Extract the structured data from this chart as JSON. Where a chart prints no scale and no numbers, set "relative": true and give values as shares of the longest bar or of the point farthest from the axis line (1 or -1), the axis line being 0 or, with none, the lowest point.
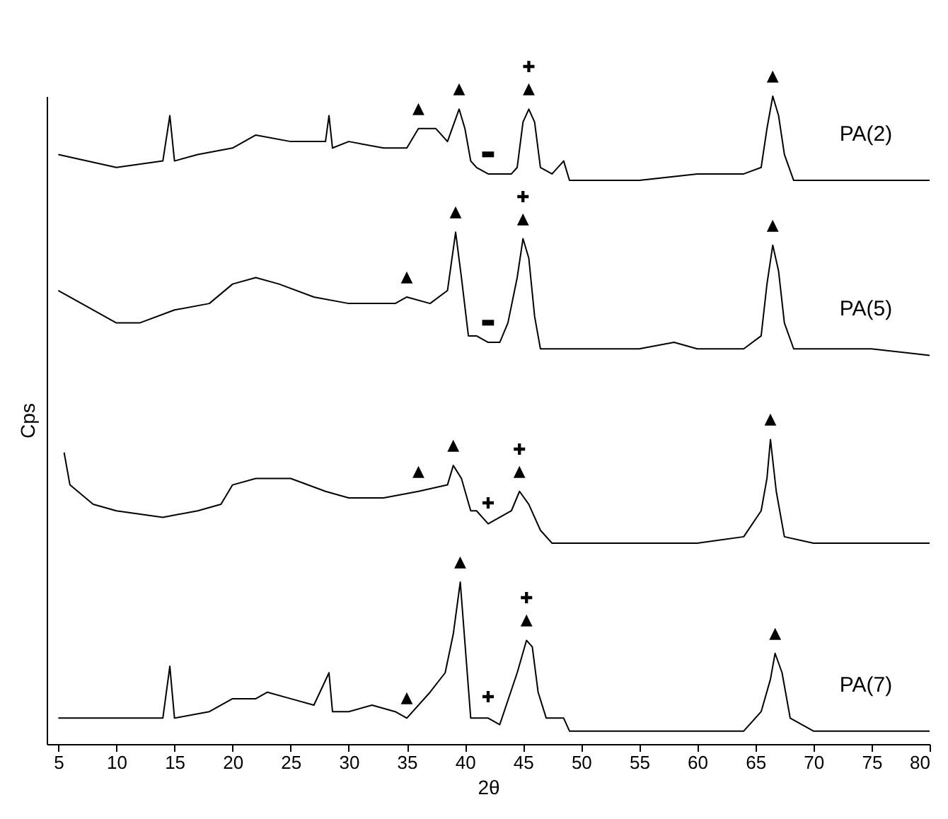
{
  "chart_data": {
    "type": "line",
    "relative": true,
    "xlabel": "2θ",
    "ylabel": "Cps",
    "xlim": [
      4,
      80
    ],
    "xticks": [
      5,
      10,
      15,
      20,
      25,
      30,
      35,
      40,
      45,
      50,
      55,
      60,
      65,
      70,
      75,
      80
    ],
    "tick_labels": "x",
    "series": [
      {
        "name": "PA(2)",
        "color": "#000000",
        "x": [
          5,
          10,
          14,
          14.6,
          15,
          17,
          20,
          22,
          25,
          28,
          28.3,
          28.6,
          30,
          33,
          35,
          36,
          37.5,
          38.5,
          39.5,
          40,
          40.5,
          41,
          42,
          43,
          44,
          44.5,
          45,
          45.5,
          46,
          46.5,
          47.5,
          48.5,
          49,
          50,
          55,
          60,
          64,
          65.5,
          66,
          66.5,
          67,
          67.5,
          68.3,
          70,
          75,
          80
        ],
        "values": [
          0.91,
          0.89,
          0.9,
          0.97,
          0.9,
          0.91,
          0.92,
          0.94,
          0.93,
          0.93,
          0.97,
          0.92,
          0.93,
          0.92,
          0.92,
          0.95,
          0.95,
          0.93,
          0.98,
          0.95,
          0.9,
          0.89,
          0.88,
          0.88,
          0.88,
          0.89,
          0.96,
          0.98,
          0.96,
          0.89,
          0.88,
          0.9,
          0.87,
          0.87,
          0.87,
          0.88,
          0.88,
          0.89,
          0.95,
          1.0,
          0.97,
          0.91,
          0.87,
          0.87,
          0.87,
          0.87
        ]
      },
      {
        "name": "PA(5)",
        "color": "#000000",
        "x": [
          5,
          7,
          10,
          12,
          15,
          18,
          20,
          22,
          24,
          27,
          30,
          34,
          35,
          37,
          38.5,
          39.2,
          39.7,
          40.3,
          41,
          42,
          43,
          43.7,
          44.5,
          45,
          45.5,
          46,
          46.5,
          50,
          55,
          58,
          60,
          64,
          65.5,
          66,
          66.5,
          67,
          67.5,
          68.3,
          75,
          80
        ],
        "values": [
          0.7,
          0.68,
          0.65,
          0.65,
          0.67,
          0.68,
          0.71,
          0.72,
          0.71,
          0.69,
          0.68,
          0.68,
          0.69,
          0.68,
          0.7,
          0.79,
          0.72,
          0.63,
          0.63,
          0.62,
          0.62,
          0.65,
          0.72,
          0.78,
          0.75,
          0.66,
          0.61,
          0.61,
          0.61,
          0.62,
          0.61,
          0.61,
          0.63,
          0.71,
          0.77,
          0.73,
          0.65,
          0.61,
          0.61,
          0.6
        ]
      },
      {
        "color": "#000000",
        "x": [
          5.5,
          6,
          8,
          10,
          14,
          17,
          19,
          20,
          22,
          25,
          28,
          30,
          33,
          36,
          38.5,
          39,
          39.7,
          40.5,
          41,
          42,
          43,
          44,
          44.7,
          45.5,
          46.5,
          47.5,
          50,
          55,
          60,
          64,
          65.5,
          66,
          66.3,
          66.8,
          67.5,
          70,
          75,
          80
        ],
        "values": [
          0.45,
          0.4,
          0.37,
          0.36,
          0.35,
          0.36,
          0.37,
          0.4,
          0.41,
          0.41,
          0.39,
          0.38,
          0.38,
          0.39,
          0.4,
          0.43,
          0.41,
          0.36,
          0.36,
          0.34,
          0.35,
          0.36,
          0.39,
          0.37,
          0.33,
          0.31,
          0.31,
          0.31,
          0.31,
          0.32,
          0.36,
          0.41,
          0.47,
          0.39,
          0.32,
          0.31,
          0.31,
          0.31
        ]
      },
      {
        "name": "PA(7)",
        "color": "#000000",
        "x": [
          5,
          10,
          14,
          14.6,
          15,
          18,
          20,
          22,
          23,
          25,
          27,
          28.3,
          28.6,
          30,
          32,
          34,
          35,
          37,
          38.3,
          39,
          39.6,
          40.2,
          40.5,
          41,
          42,
          43,
          44.5,
          45.3,
          45.8,
          46.3,
          47,
          48.5,
          49,
          55,
          60,
          64,
          65.5,
          66.3,
          66.7,
          67.3,
          68,
          70,
          75,
          80
        ],
        "values": [
          0.04,
          0.04,
          0.04,
          0.12,
          0.04,
          0.05,
          0.07,
          0.07,
          0.08,
          0.07,
          0.06,
          0.11,
          0.05,
          0.05,
          0.06,
          0.05,
          0.04,
          0.08,
          0.11,
          0.17,
          0.25,
          0.11,
          0.04,
          0.04,
          0.04,
          0.03,
          0.11,
          0.16,
          0.15,
          0.08,
          0.04,
          0.04,
          0.02,
          0.02,
          0.02,
          0.02,
          0.05,
          0.1,
          0.14,
          0.11,
          0.04,
          0.02,
          0.02,
          0.02
        ]
      }
    ],
    "annotations": [
      {
        "text": "▲",
        "x": 36,
        "y": 0.95
      },
      {
        "text": "▲",
        "x": 39.5,
        "y": 0.98
      },
      {
        "text": "▬",
        "x": 42,
        "y": 0.88
      },
      {
        "text": "▲",
        "x": 45.5,
        "y": 0.98
      },
      {
        "text": "✚",
        "x": 45.5,
        "y": 0.98
      },
      {
        "text": "▲",
        "x": 66.5,
        "y": 1.0
      },
      {
        "text": "▲",
        "x": 35,
        "y": 0.69
      },
      {
        "text": "▲",
        "x": 39.2,
        "y": 0.79
      },
      {
        "text": "▬",
        "x": 42,
        "y": 0.62
      },
      {
        "text": "▲",
        "x": 45,
        "y": 0.78
      },
      {
        "text": "✚",
        "x": 45,
        "y": 0.78
      },
      {
        "text": "▲",
        "x": 66.5,
        "y": 0.77
      },
      {
        "text": "▲",
        "x": 36,
        "y": 0.39
      },
      {
        "text": "▲",
        "x": 39,
        "y": 0.43
      },
      {
        "text": "✚",
        "x": 42,
        "y": 0.34
      },
      {
        "text": "▲",
        "x": 44.7,
        "y": 0.39
      },
      {
        "text": "✚",
        "x": 44.7,
        "y": 0.39
      },
      {
        "text": "▲",
        "x": 66.3,
        "y": 0.47
      },
      {
        "text": "▲",
        "x": 35,
        "y": 0.04
      },
      {
        "text": "▲",
        "x": 39.6,
        "y": 0.25
      },
      {
        "text": "✚",
        "x": 42,
        "y": 0.04
      },
      {
        "text": "▲",
        "x": 45.3,
        "y": 0.16
      },
      {
        "text": "✚",
        "x": 45.3,
        "y": 0.16
      },
      {
        "text": "▲",
        "x": 66.7,
        "y": 0.14
      }
    ]
  }
}
